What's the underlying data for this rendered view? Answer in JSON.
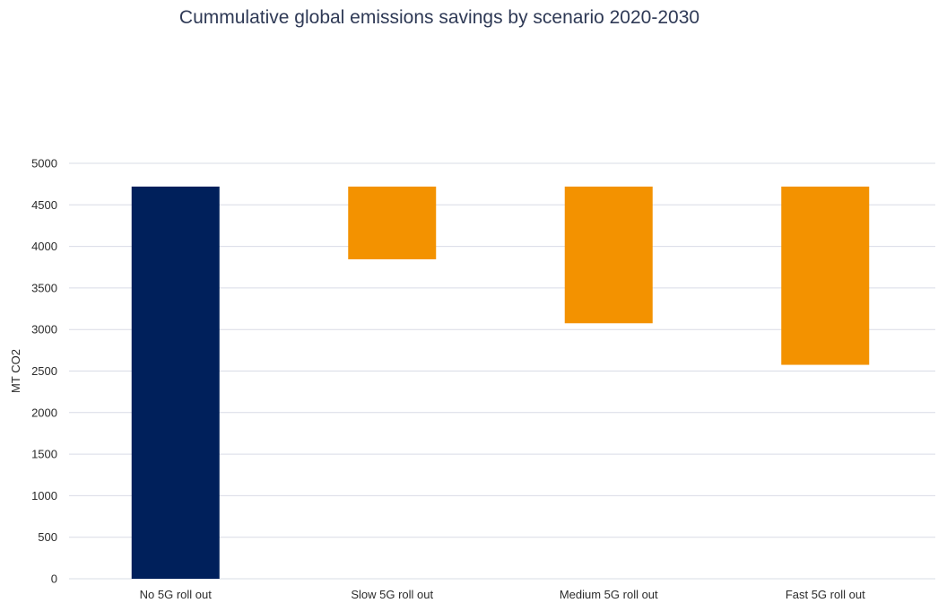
{
  "chart_data": {
    "type": "bar",
    "subtype": "waterfall-floating",
    "title": "Cummulative global emissions savings by scenario 2020-2030",
    "xlabel": "",
    "ylabel": "MT CO2",
    "ylim": [
      0,
      5000
    ],
    "yticks": [
      0,
      500,
      1000,
      1500,
      2000,
      2500,
      3000,
      3500,
      4000,
      4500,
      5000
    ],
    "grid": true,
    "legend": "none",
    "categories": [
      "No 5G roll out",
      "Slow 5G roll out",
      "Medium 5G roll out",
      "Fast 5G roll out"
    ],
    "bars": [
      {
        "category": "No 5G roll out",
        "low": 0,
        "high": 4720,
        "color": "#00205b"
      },
      {
        "category": "Slow 5G roll out",
        "low": 3845,
        "high": 4720,
        "color": "#f39200"
      },
      {
        "category": "Medium 5G roll out",
        "low": 3075,
        "high": 4720,
        "color": "#f39200"
      },
      {
        "category": "Fast 5G roll out",
        "low": 2575,
        "high": 4720,
        "color": "#f39200"
      }
    ],
    "colors": {
      "baseline": "#00205b",
      "savings": "#f39200",
      "grid": "#d9dce6"
    }
  }
}
